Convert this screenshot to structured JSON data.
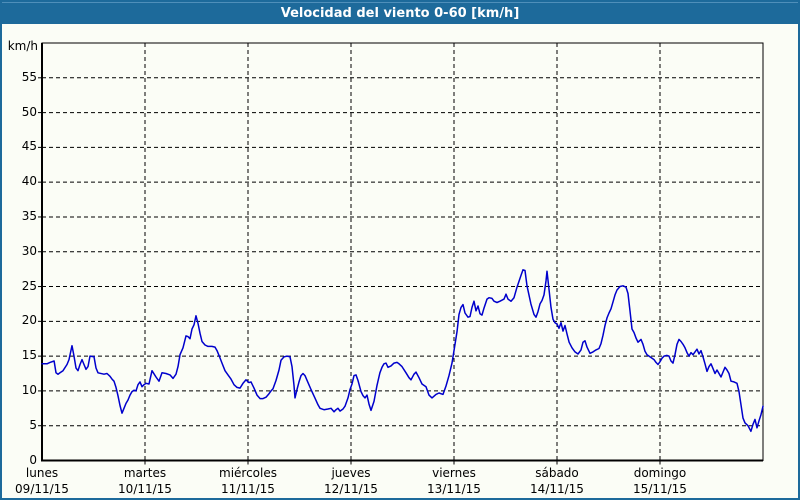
{
  "title": "Velocidad del viento 0-60 [km/h]",
  "colors": {
    "titlebar_bg": "#1d6a9b",
    "frame_border": "#1d6a9b",
    "background": "#fbfdf6",
    "line": "#0000cc",
    "grid": "#000000",
    "axis": "#000000",
    "text": "#000000",
    "title_text": "#ffffff"
  },
  "chart_data": {
    "type": "line",
    "title": "Velocidad del viento 0-60 [km/h]",
    "xlabel": "",
    "ylabel": "km/h",
    "ylim": [
      0,
      60
    ],
    "ytick_step": 5,
    "ytick_labels": [
      "0",
      "5",
      "10",
      "15",
      "20",
      "25",
      "30",
      "35",
      "40",
      "45",
      "50",
      "55"
    ],
    "grid": true,
    "legend": "none",
    "x_axis_days": [
      0,
      7
    ],
    "x_labels": [
      {
        "day": "lunes",
        "date": "09/11/15"
      },
      {
        "day": "martes",
        "date": "10/11/15"
      },
      {
        "day": "miércoles",
        "date": "11/11/15"
      },
      {
        "day": "jueves",
        "date": "12/11/15"
      },
      {
        "day": "viernes",
        "date": "13/11/15"
      },
      {
        "day": "sábado",
        "date": "14/11/15"
      },
      {
        "day": "domingo",
        "date": "15/11/15"
      }
    ],
    "series": [
      {
        "name": "velocidad-del-viento-kmh",
        "color": "#0000cc",
        "points": [
          [
            0.0,
            13.9
          ],
          [
            0.049,
            13.9
          ],
          [
            0.078,
            14.1
          ],
          [
            0.117,
            14.3
          ],
          [
            0.136,
            12.6
          ],
          [
            0.155,
            12.4
          ],
          [
            0.175,
            12.6
          ],
          [
            0.204,
            12.9
          ],
          [
            0.243,
            13.8
          ],
          [
            0.262,
            14.5
          ],
          [
            0.291,
            16.5
          ],
          [
            0.311,
            15.0
          ],
          [
            0.33,
            13.3
          ],
          [
            0.35,
            12.9
          ],
          [
            0.369,
            13.8
          ],
          [
            0.388,
            14.5
          ],
          [
            0.408,
            13.8
          ],
          [
            0.427,
            13.1
          ],
          [
            0.447,
            13.5
          ],
          [
            0.466,
            15.0
          ],
          [
            0.505,
            14.9
          ],
          [
            0.524,
            13.3
          ],
          [
            0.544,
            12.6
          ],
          [
            0.602,
            12.4
          ],
          [
            0.631,
            12.5
          ],
          [
            0.66,
            12.1
          ],
          [
            0.68,
            11.7
          ],
          [
            0.699,
            11.4
          ],
          [
            0.718,
            10.5
          ],
          [
            0.738,
            9.3
          ],
          [
            0.757,
            7.9
          ],
          [
            0.777,
            6.8
          ],
          [
            0.796,
            7.5
          ],
          [
            0.816,
            8.2
          ],
          [
            0.835,
            8.7
          ],
          [
            0.854,
            9.4
          ],
          [
            0.874,
            9.9
          ],
          [
            0.893,
            10.1
          ],
          [
            0.913,
            10.0
          ],
          [
            0.932,
            10.9
          ],
          [
            0.951,
            11.3
          ],
          [
            0.971,
            10.6
          ],
          [
            0.99,
            10.9
          ],
          [
            1.01,
            11.1
          ],
          [
            1.039,
            11.0
          ],
          [
            1.068,
            12.9
          ],
          [
            1.107,
            12.0
          ],
          [
            1.136,
            11.4
          ],
          [
            1.165,
            12.6
          ],
          [
            1.204,
            12.5
          ],
          [
            1.243,
            12.3
          ],
          [
            1.272,
            11.8
          ],
          [
            1.301,
            12.4
          ],
          [
            1.32,
            13.5
          ],
          [
            1.34,
            15.2
          ],
          [
            1.369,
            16.2
          ],
          [
            1.398,
            17.9
          ],
          [
            1.417,
            17.8
          ],
          [
            1.437,
            17.5
          ],
          [
            1.456,
            18.9
          ],
          [
            1.476,
            19.5
          ],
          [
            1.495,
            20.8
          ],
          [
            1.515,
            19.7
          ],
          [
            1.534,
            18.3
          ],
          [
            1.553,
            17.1
          ],
          [
            1.583,
            16.6
          ],
          [
            1.612,
            16.4
          ],
          [
            1.65,
            16.4
          ],
          [
            1.68,
            16.3
          ],
          [
            1.699,
            15.8
          ],
          [
            1.718,
            15.1
          ],
          [
            1.748,
            14.0
          ],
          [
            1.777,
            12.9
          ],
          [
            1.806,
            12.3
          ],
          [
            1.835,
            11.7
          ],
          [
            1.864,
            10.9
          ],
          [
            1.893,
            10.5
          ],
          [
            1.922,
            10.4
          ],
          [
            1.951,
            11.1
          ],
          [
            1.981,
            11.6
          ],
          [
            2.01,
            11.2
          ],
          [
            2.029,
            11.3
          ],
          [
            2.058,
            10.4
          ],
          [
            2.087,
            9.4
          ],
          [
            2.117,
            8.9
          ],
          [
            2.146,
            8.9
          ],
          [
            2.175,
            9.1
          ],
          [
            2.204,
            9.6
          ],
          [
            2.223,
            10.0
          ],
          [
            2.243,
            10.3
          ],
          [
            2.272,
            11.5
          ],
          [
            2.301,
            13.0
          ],
          [
            2.32,
            14.4
          ],
          [
            2.35,
            14.9
          ],
          [
            2.379,
            15.0
          ],
          [
            2.408,
            14.9
          ],
          [
            2.427,
            13.5
          ],
          [
            2.447,
            10.8
          ],
          [
            2.456,
            9.0
          ],
          [
            2.476,
            10.2
          ],
          [
            2.495,
            11.3
          ],
          [
            2.515,
            12.2
          ],
          [
            2.534,
            12.5
          ],
          [
            2.553,
            12.2
          ],
          [
            2.583,
            11.2
          ],
          [
            2.612,
            10.2
          ],
          [
            2.65,
            9.0
          ],
          [
            2.68,
            8.0
          ],
          [
            2.699,
            7.5
          ],
          [
            2.738,
            7.3
          ],
          [
            2.777,
            7.4
          ],
          [
            2.806,
            7.5
          ],
          [
            2.835,
            7.0
          ],
          [
            2.854,
            7.3
          ],
          [
            2.874,
            7.5
          ],
          [
            2.893,
            7.1
          ],
          [
            2.922,
            7.4
          ],
          [
            2.942,
            7.8
          ],
          [
            2.971,
            9.0
          ],
          [
            2.99,
            10.2
          ],
          [
            3.01,
            11.0
          ],
          [
            3.029,
            12.2
          ],
          [
            3.049,
            12.3
          ],
          [
            3.068,
            11.5
          ],
          [
            3.097,
            9.9
          ],
          [
            3.117,
            9.3
          ],
          [
            3.136,
            9.0
          ],
          [
            3.155,
            9.4
          ],
          [
            3.175,
            8.1
          ],
          [
            3.194,
            7.2
          ],
          [
            3.223,
            8.5
          ],
          [
            3.252,
            10.8
          ],
          [
            3.281,
            12.6
          ],
          [
            3.301,
            13.4
          ],
          [
            3.32,
            13.9
          ],
          [
            3.34,
            14.0
          ],
          [
            3.359,
            13.4
          ],
          [
            3.388,
            13.6
          ],
          [
            3.417,
            14.0
          ],
          [
            3.447,
            14.1
          ],
          [
            3.466,
            13.9
          ],
          [
            3.495,
            13.5
          ],
          [
            3.534,
            12.6
          ],
          [
            3.563,
            11.9
          ],
          [
            3.583,
            11.6
          ],
          [
            3.612,
            12.4
          ],
          [
            3.631,
            12.7
          ],
          [
            3.66,
            11.9
          ],
          [
            3.689,
            11.0
          ],
          [
            3.728,
            10.6
          ],
          [
            3.757,
            9.4
          ],
          [
            3.786,
            9.0
          ],
          [
            3.825,
            9.5
          ],
          [
            3.854,
            9.7
          ],
          [
            3.893,
            9.5
          ],
          [
            3.922,
            10.7
          ],
          [
            3.951,
            12.2
          ],
          [
            3.981,
            14.0
          ],
          [
            4.0,
            15.8
          ],
          [
            4.029,
            18.5
          ],
          [
            4.049,
            21.0
          ],
          [
            4.068,
            22.0
          ],
          [
            4.087,
            22.4
          ],
          [
            4.107,
            21.2
          ],
          [
            4.136,
            20.6
          ],
          [
            4.155,
            20.7
          ],
          [
            4.175,
            22.0
          ],
          [
            4.194,
            22.9
          ],
          [
            4.214,
            21.5
          ],
          [
            4.233,
            22.2
          ],
          [
            4.252,
            21.1
          ],
          [
            4.272,
            20.9
          ],
          [
            4.291,
            21.9
          ],
          [
            4.32,
            23.2
          ],
          [
            4.34,
            23.4
          ],
          [
            4.369,
            23.3
          ],
          [
            4.388,
            22.9
          ],
          [
            4.417,
            22.7
          ],
          [
            4.447,
            22.9
          ],
          [
            4.485,
            23.2
          ],
          [
            4.505,
            23.9
          ],
          [
            4.524,
            23.2
          ],
          [
            4.553,
            22.9
          ],
          [
            4.583,
            23.4
          ],
          [
            4.612,
            24.9
          ],
          [
            4.65,
            26.6
          ],
          [
            4.67,
            27.4
          ],
          [
            4.689,
            27.3
          ],
          [
            4.709,
            25.1
          ],
          [
            4.747,
            22.5
          ],
          [
            4.777,
            21.0
          ],
          [
            4.796,
            20.6
          ],
          [
            4.816,
            21.4
          ],
          [
            4.835,
            22.5
          ],
          [
            4.854,
            23.0
          ],
          [
            4.874,
            23.8
          ],
          [
            4.893,
            25.8
          ],
          [
            4.903,
            27.2
          ],
          [
            4.922,
            24.6
          ],
          [
            4.942,
            22.0
          ],
          [
            4.961,
            20.3
          ],
          [
            4.981,
            19.8
          ],
          [
            5.0,
            19.6
          ],
          [
            5.019,
            19.0
          ],
          [
            5.039,
            19.8
          ],
          [
            5.058,
            18.6
          ],
          [
            5.078,
            19.4
          ],
          [
            5.097,
            18.2
          ],
          [
            5.117,
            17.0
          ],
          [
            5.146,
            16.2
          ],
          [
            5.175,
            15.6
          ],
          [
            5.204,
            15.3
          ],
          [
            5.233,
            15.9
          ],
          [
            5.252,
            17.0
          ],
          [
            5.272,
            17.2
          ],
          [
            5.291,
            16.3
          ],
          [
            5.32,
            15.4
          ],
          [
            5.35,
            15.6
          ],
          [
            5.379,
            15.9
          ],
          [
            5.408,
            16.1
          ],
          [
            5.427,
            16.8
          ],
          [
            5.447,
            18.0
          ],
          [
            5.466,
            19.4
          ],
          [
            5.485,
            20.5
          ],
          [
            5.505,
            21.2
          ],
          [
            5.524,
            21.8
          ],
          [
            5.544,
            22.8
          ],
          [
            5.563,
            23.8
          ],
          [
            5.583,
            24.5
          ],
          [
            5.612,
            25.0
          ],
          [
            5.641,
            25.1
          ],
          [
            5.67,
            24.9
          ],
          [
            5.689,
            24.0
          ],
          [
            5.709,
            21.5
          ],
          [
            5.728,
            18.9
          ],
          [
            5.748,
            18.4
          ],
          [
            5.767,
            17.6
          ],
          [
            5.786,
            17.0
          ],
          [
            5.816,
            17.4
          ],
          [
            5.835,
            16.7
          ],
          [
            5.854,
            15.7
          ],
          [
            5.874,
            15.2
          ],
          [
            5.893,
            15.0
          ],
          [
            5.913,
            14.8
          ],
          [
            5.942,
            14.5
          ],
          [
            5.961,
            14.1
          ],
          [
            5.981,
            13.8
          ],
          [
            6.0,
            14.2
          ],
          [
            6.019,
            14.7
          ],
          [
            6.039,
            15.0
          ],
          [
            6.068,
            15.1
          ],
          [
            6.087,
            15.0
          ],
          [
            6.107,
            14.3
          ],
          [
            6.126,
            14.0
          ],
          [
            6.146,
            15.2
          ],
          [
            6.165,
            16.7
          ],
          [
            6.184,
            17.4
          ],
          [
            6.204,
            17.1
          ],
          [
            6.223,
            16.7
          ],
          [
            6.243,
            16.2
          ],
          [
            6.262,
            15.5
          ],
          [
            6.282,
            15.0
          ],
          [
            6.301,
            15.5
          ],
          [
            6.32,
            15.2
          ],
          [
            6.34,
            15.6
          ],
          [
            6.359,
            16.0
          ],
          [
            6.379,
            15.3
          ],
          [
            6.398,
            15.8
          ],
          [
            6.417,
            14.9
          ],
          [
            6.437,
            13.9
          ],
          [
            6.456,
            12.8
          ],
          [
            6.476,
            13.5
          ],
          [
            6.495,
            13.9
          ],
          [
            6.515,
            13.2
          ],
          [
            6.534,
            12.5
          ],
          [
            6.553,
            13.0
          ],
          [
            6.573,
            12.5
          ],
          [
            6.592,
            12.0
          ],
          [
            6.612,
            12.7
          ],
          [
            6.631,
            13.4
          ],
          [
            6.65,
            13.0
          ],
          [
            6.67,
            12.5
          ],
          [
            6.689,
            11.4
          ],
          [
            6.718,
            11.3
          ],
          [
            6.748,
            11.1
          ],
          [
            6.767,
            9.9
          ],
          [
            6.786,
            8.0
          ],
          [
            6.806,
            6.1
          ],
          [
            6.825,
            5.4
          ],
          [
            6.854,
            5.0
          ],
          [
            6.883,
            4.2
          ],
          [
            6.903,
            5.2
          ],
          [
            6.922,
            5.9
          ],
          [
            6.942,
            4.7
          ],
          [
            6.961,
            5.7
          ],
          [
            6.981,
            6.6
          ],
          [
            6.99,
            7.2
          ],
          [
            7.0,
            7.8
          ]
        ]
      }
    ]
  }
}
